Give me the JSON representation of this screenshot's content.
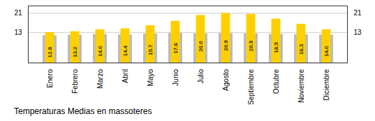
{
  "chart_data": {
    "type": "bar",
    "title": "Temperaturas Medias en massoteres",
    "categories": [
      "Enero",
      "Febrero",
      "Marzo",
      "Abril",
      "Mayo",
      "Junio",
      "Julio",
      "Agosto",
      "Septiembre",
      "Octubre",
      "Noviembre",
      "Diciembre"
    ],
    "series": [
      {
        "color": "#BBBBBB",
        "values": [
          11.5,
          11.7,
          12.0,
          11.8,
          12.2,
          12.5,
          12.3,
          12.4,
          12.3,
          12.1,
          11.9,
          11.8
        ]
      },
      {
        "color": "#FFD000",
        "values": [
          12.8,
          13.2,
          14.0,
          14.4,
          15.7,
          17.6,
          20.0,
          20.9,
          20.5,
          18.5,
          16.3,
          14.0
        ],
        "data_labels": true,
        "value_labels": [
          "12.8",
          "13.2",
          "14.0",
          "14.4",
          "15.7",
          "17.6",
          "20.0",
          "20.9",
          "20.5",
          "18.5",
          "16.3",
          "14.0"
        ]
      }
    ],
    "ylim": [
      0,
      24.0
    ],
    "yticks": [
      12.8,
      20.9
    ],
    "y2lim": [
      0,
      24.0
    ],
    "y2ticks": [
      12.8,
      20.9
    ],
    "grid": true
  }
}
